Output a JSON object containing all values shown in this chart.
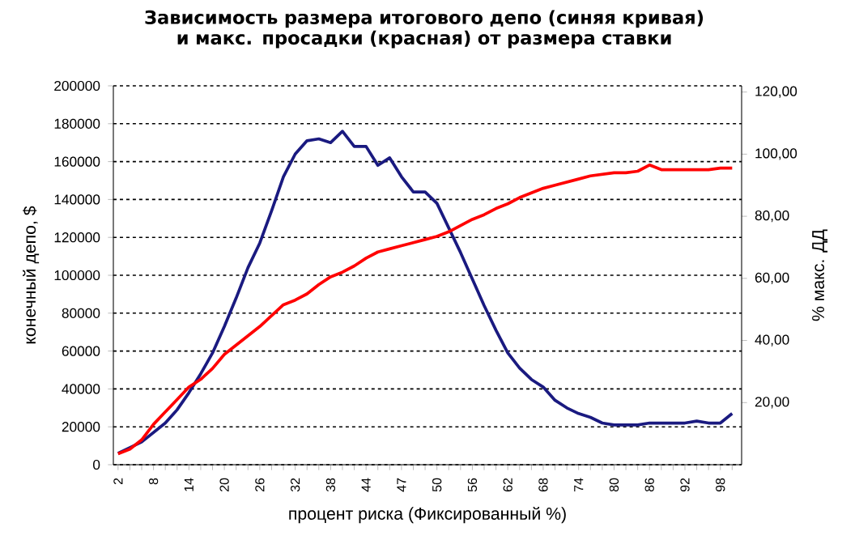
{
  "chart_data": {
    "type": "line",
    "title": "Зависимость размера итогового депо (синяя кривая) и макс. просадки (красная) от размера ставки",
    "xlabel": "процент риска (Фиксированный %)",
    "ylabel": "конечный депо, $",
    "y2label": "% макс. ДД",
    "categories": [
      "2",
      null,
      null,
      "8",
      null,
      null,
      "14",
      null,
      null,
      "20",
      null,
      null,
      "26",
      null,
      null,
      "32",
      null,
      null,
      "38",
      null,
      null,
      "44",
      null,
      null,
      "47",
      null,
      null,
      "50",
      null,
      null,
      "56",
      null,
      null,
      "62",
      null,
      null,
      "68",
      null,
      null,
      "74",
      null,
      null,
      "80",
      null,
      null,
      "86",
      null,
      null,
      "92",
      null,
      null,
      "98",
      null
    ],
    "series": [
      {
        "color": "#1a1a80",
        "values": [
          6000,
          9000,
          12000,
          17000,
          22000,
          29000,
          38000,
          48000,
          59000,
          73000,
          88000,
          104000,
          117000,
          134000,
          152000,
          164000,
          171000,
          172000,
          170000,
          176000,
          168000,
          168000,
          158000,
          162000,
          152000,
          144000,
          144000,
          138000,
          125000,
          112000,
          98000,
          84000,
          71000,
          59000,
          51000,
          45000,
          41000,
          34000,
          30000,
          27000,
          25000,
          22000,
          21000,
          21000,
          21000,
          22000,
          22000,
          22000,
          22000,
          23000,
          22000,
          22000,
          27000
        ]
      },
      {
        "color": "#ff0000",
        "axis": "y2",
        "values": [
          3.5,
          5,
          8,
          13,
          17,
          21,
          25,
          27.5,
          31,
          35.5,
          38.5,
          41.5,
          44.5,
          48,
          51.5,
          53,
          55,
          58,
          60.5,
          62,
          64,
          66.5,
          68.5,
          69.5,
          70.5,
          71.5,
          72.5,
          73.5,
          75,
          77,
          79,
          80.5,
          82.5,
          84,
          86,
          87.5,
          89,
          90,
          91,
          92,
          93,
          93.5,
          94,
          94,
          94.5,
          96.5,
          95,
          95,
          95,
          95,
          95,
          95.5,
          95.5
        ]
      }
    ],
    "ylim": [
      0,
      200000
    ],
    "yticks": [
      0,
      20000,
      40000,
      60000,
      80000,
      100000,
      120000,
      140000,
      160000,
      180000,
      200000
    ],
    "y2lim": [
      0,
      122
    ],
    "y2ticks": [
      {
        "value": 20,
        "label": "20,00"
      },
      {
        "value": 40,
        "label": "40,00"
      },
      {
        "value": 60,
        "label": "60,00"
      },
      {
        "value": 80,
        "label": "80,00"
      },
      {
        "value": 100,
        "label": "100,00"
      },
      {
        "value": 120,
        "label": "120,00"
      }
    ],
    "grid": "y",
    "marker": "none",
    "line_style": "solid"
  }
}
